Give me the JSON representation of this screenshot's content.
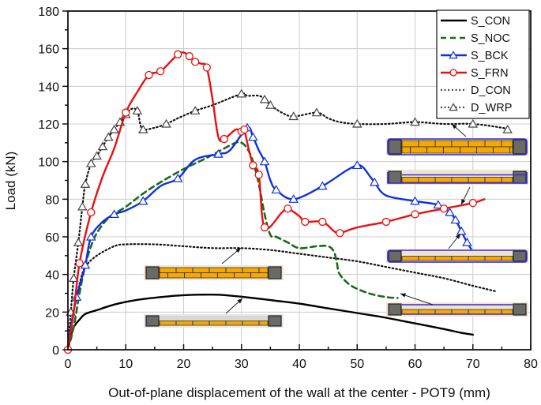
{
  "chart_data": {
    "type": "line",
    "title": "",
    "xlabel": "Out-of-plane displacement of the wall at the center - POT9 (mm)",
    "ylabel": "Load (kN)",
    "xlim": [
      0,
      80
    ],
    "ylim": [
      0,
      180
    ],
    "x_ticks": [
      "0",
      "10",
      "20",
      "30",
      "40",
      "50",
      "60",
      "70",
      "80"
    ],
    "y_ticks": [
      "0",
      "20",
      "40",
      "60",
      "80",
      "100",
      "120",
      "140",
      "160",
      "180"
    ],
    "grid": true,
    "legend_position": "upper right",
    "series": [
      {
        "name": "S_CON",
        "color": "#000000",
        "style": "solid",
        "marker": "none",
        "points": [
          [
            0,
            0
          ],
          [
            0.5,
            7
          ],
          [
            1,
            12
          ],
          [
            2,
            16
          ],
          [
            3,
            19
          ],
          [
            5,
            21
          ],
          [
            8,
            24
          ],
          [
            12,
            26.5
          ],
          [
            16,
            28
          ],
          [
            20,
            29
          ],
          [
            25,
            29.3
          ],
          [
            28,
            28.8
          ],
          [
            32,
            27.5
          ],
          [
            36,
            26
          ],
          [
            40,
            24.5
          ],
          [
            45,
            22
          ],
          [
            50,
            19.5
          ],
          [
            55,
            17
          ],
          [
            60,
            14
          ],
          [
            65,
            11
          ],
          [
            68,
            9
          ],
          [
            70,
            8
          ]
        ]
      },
      {
        "name": "S_NOC",
        "color": "#1a6b1a",
        "style": "dashed",
        "marker": "none",
        "points": [
          [
            0,
            0
          ],
          [
            1,
            12
          ],
          [
            2,
            30
          ],
          [
            3,
            45
          ],
          [
            4,
            55
          ],
          [
            5,
            62
          ],
          [
            7,
            70
          ],
          [
            10,
            76
          ],
          [
            13,
            83
          ],
          [
            16,
            89
          ],
          [
            20,
            96
          ],
          [
            24,
            102
          ],
          [
            27,
            107
          ],
          [
            29,
            110
          ],
          [
            30,
            110
          ],
          [
            31,
            107
          ],
          [
            32,
            100
          ],
          [
            33,
            88
          ],
          [
            34,
            72
          ],
          [
            35,
            61
          ],
          [
            36,
            60
          ],
          [
            38,
            57
          ],
          [
            40,
            54
          ],
          [
            43,
            55
          ],
          [
            45,
            55
          ],
          [
            46,
            52
          ],
          [
            46.5,
            46
          ],
          [
            47,
            40
          ],
          [
            49,
            34
          ],
          [
            52,
            30
          ],
          [
            55,
            28
          ],
          [
            57,
            27.5
          ]
        ]
      },
      {
        "name": "S_BCK",
        "color": "#1030e0",
        "style": "solid",
        "marker": "triangle",
        "points": [
          [
            0,
            0
          ],
          [
            0.5,
            12
          ],
          [
            1.5,
            28
          ],
          [
            3,
            45
          ],
          [
            4,
            60
          ],
          [
            6,
            68
          ],
          [
            8,
            72
          ],
          [
            10,
            74
          ],
          [
            13,
            79
          ],
          [
            16,
            87
          ],
          [
            19,
            91
          ],
          [
            22,
            101
          ],
          [
            26,
            104
          ],
          [
            28,
            106
          ],
          [
            31,
            118
          ],
          [
            32,
            113
          ],
          [
            33,
            106
          ],
          [
            34,
            100
          ],
          [
            35,
            90
          ],
          [
            36,
            85
          ],
          [
            39,
            80
          ],
          [
            44,
            87
          ],
          [
            48,
            95
          ],
          [
            50,
            98
          ],
          [
            51,
            97
          ],
          [
            52,
            93
          ],
          [
            53,
            89
          ],
          [
            55,
            82
          ],
          [
            60,
            79
          ],
          [
            64,
            77
          ],
          [
            66,
            73
          ],
          [
            67,
            69
          ],
          [
            68,
            63
          ],
          [
            69,
            57
          ],
          [
            70,
            52
          ]
        ]
      },
      {
        "name": "S_FRN",
        "color": "#e81010",
        "style": "solid",
        "marker": "circle",
        "points": [
          [
            0,
            0
          ],
          [
            1,
            20
          ],
          [
            2,
            46
          ],
          [
            4,
            73
          ],
          [
            6,
            92
          ],
          [
            8,
            107
          ],
          [
            10,
            126
          ],
          [
            12,
            137
          ],
          [
            14,
            146
          ],
          [
            16,
            148
          ],
          [
            18,
            154
          ],
          [
            19,
            157
          ],
          [
            20,
            158
          ],
          [
            21,
            156
          ],
          [
            22,
            153
          ],
          [
            23,
            152
          ],
          [
            24,
            150
          ],
          [
            25,
            133
          ],
          [
            26,
            113
          ],
          [
            27,
            112
          ],
          [
            29,
            117
          ],
          [
            30,
            116
          ],
          [
            30.5,
            117
          ],
          [
            31,
            110
          ],
          [
            32,
            98
          ],
          [
            33,
            93
          ],
          [
            34,
            65
          ],
          [
            37,
            73
          ],
          [
            38,
            75
          ],
          [
            40,
            71
          ],
          [
            41,
            68
          ],
          [
            44,
            68
          ],
          [
            46,
            63
          ],
          [
            47,
            62
          ],
          [
            50,
            65
          ],
          [
            55,
            68
          ],
          [
            60,
            72
          ],
          [
            65,
            75
          ],
          [
            70,
            78
          ],
          [
            72,
            80
          ]
        ]
      },
      {
        "name": "D_CON",
        "color": "#111111",
        "style": "dotted",
        "marker": "none",
        "points": [
          [
            0,
            0
          ],
          [
            1,
            20
          ],
          [
            2,
            35
          ],
          [
            3,
            44
          ],
          [
            5,
            50
          ],
          [
            8,
            55
          ],
          [
            10,
            56
          ],
          [
            15,
            56
          ],
          [
            20,
            55
          ],
          [
            25,
            54
          ],
          [
            30,
            54
          ],
          [
            35,
            53
          ],
          [
            40,
            51
          ],
          [
            45,
            49
          ],
          [
            50,
            47
          ],
          [
            55,
            44
          ],
          [
            60,
            41
          ],
          [
            65,
            38
          ],
          [
            70,
            34
          ],
          [
            74,
            31
          ]
        ]
      },
      {
        "name": "D_WRP",
        "color": "#111111",
        "style": "dotted",
        "marker": "triangle-open",
        "points": [
          [
            0,
            0
          ],
          [
            0.5,
            20
          ],
          [
            1,
            38
          ],
          [
            1.8,
            57
          ],
          [
            2.5,
            76
          ],
          [
            3,
            88
          ],
          [
            4,
            99
          ],
          [
            5,
            103
          ],
          [
            6,
            108
          ],
          [
            7,
            113
          ],
          [
            8,
            117
          ],
          [
            9,
            121
          ],
          [
            10,
            125
          ],
          [
            11,
            128
          ],
          [
            12,
            127
          ],
          [
            12.5,
            120
          ],
          [
            13,
            117
          ],
          [
            15,
            118
          ],
          [
            17,
            120
          ],
          [
            19,
            123
          ],
          [
            22,
            127
          ],
          [
            25,
            130
          ],
          [
            30,
            136
          ],
          [
            31,
            135
          ],
          [
            33,
            135
          ],
          [
            34,
            133
          ],
          [
            35,
            130
          ],
          [
            37,
            126
          ],
          [
            39,
            124
          ],
          [
            43,
            126
          ],
          [
            45,
            123
          ],
          [
            47,
            121
          ],
          [
            50,
            120
          ],
          [
            55,
            120
          ],
          [
            60,
            121
          ],
          [
            65,
            120
          ],
          [
            70,
            120
          ],
          [
            75,
            118
          ],
          [
            76,
            117
          ]
        ]
      }
    ],
    "annotations": [
      {
        "type": "wall-section-inset",
        "label": "double-wythe unreinforced wall",
        "points_to": "D_CON"
      },
      {
        "type": "wall-section-inset",
        "label": "single-wythe wall",
        "points_to": "S_CON"
      },
      {
        "type": "wall-section-inset",
        "label": "double-wythe wall with wrap",
        "points_to": "D_WRP"
      },
      {
        "type": "wall-section-inset",
        "label": "single-wythe wall front strengthened",
        "points_to": "S_FRN"
      },
      {
        "type": "wall-section-inset",
        "label": "single-wythe wall back strengthened",
        "points_to": "S_BCK"
      },
      {
        "type": "wall-section-inset",
        "label": "single-wythe wall no connectors",
        "points_to": "S_NOC"
      }
    ]
  },
  "legend": {
    "items": [
      {
        "label": "S_CON"
      },
      {
        "label": "S_NOC"
      },
      {
        "label": "S_BCK"
      },
      {
        "label": "S_FRN"
      },
      {
        "label": "D_CON"
      },
      {
        "label": "D_WRP"
      }
    ]
  },
  "colors": {
    "brick": "#f5a800",
    "mortar": "#333333",
    "column": "#6a6a66",
    "inset_bg": "#efe4d4",
    "wrap": "#3a2ad8",
    "grid": "#cccccc"
  }
}
